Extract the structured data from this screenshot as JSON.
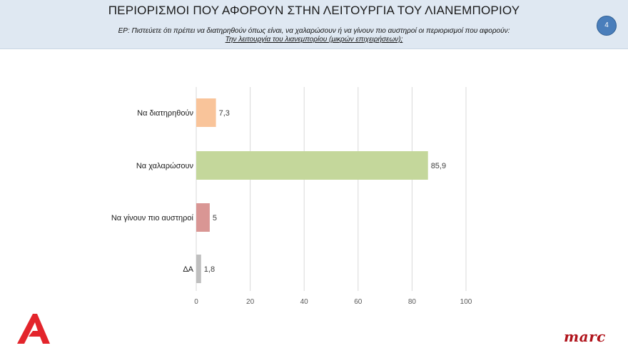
{
  "header": {
    "title": "ΠΕΡΙΟΡΙΣΜΟΙ ΠΟΥ ΑΦΟΡΟΥΝ ΣΤΗΝ ΛΕΙΤΟΥΡΓΙΑ ΤΟΥ ΛΙΑΝΕΜΠΟΡΙΟΥ",
    "question": "ΕΡ:  Πιστεύετε ότι πρέπει  να διατηρηθούν όπως είναι, να χαλαρώσουν ή να γίνουν πιο αυστηροί  οι περιορισμοί που αφορούν:",
    "question_sub": "Την λειτουργία του λιανεμπορίου (μικρών επιχειρήσεων);",
    "page_number": "4"
  },
  "footer": {
    "brand": "marc"
  },
  "colors": {
    "header_bg": "#dfe8f2",
    "page_badge": "#4a7ebb",
    "brand_red": "#b0131b",
    "logo_red": "#e3242b"
  },
  "chart_data": {
    "type": "bar",
    "orientation": "horizontal",
    "categories": [
      "Να διατηρηθούν",
      "Να χαλαρώσουν",
      "Να γίνουν πιο αυστηροί",
      "ΔΑ"
    ],
    "values": [
      7.3,
      85.9,
      5,
      1.8
    ],
    "value_labels": [
      "7,3",
      "85,9",
      "5",
      "1,8"
    ],
    "bar_colors": [
      "#f9c49a",
      "#c4d79b",
      "#d99694",
      "#bfbfbf"
    ],
    "xlim": [
      0,
      100
    ],
    "xticks": [
      0,
      20,
      40,
      60,
      80,
      100
    ],
    "grid": true,
    "legend": false
  }
}
